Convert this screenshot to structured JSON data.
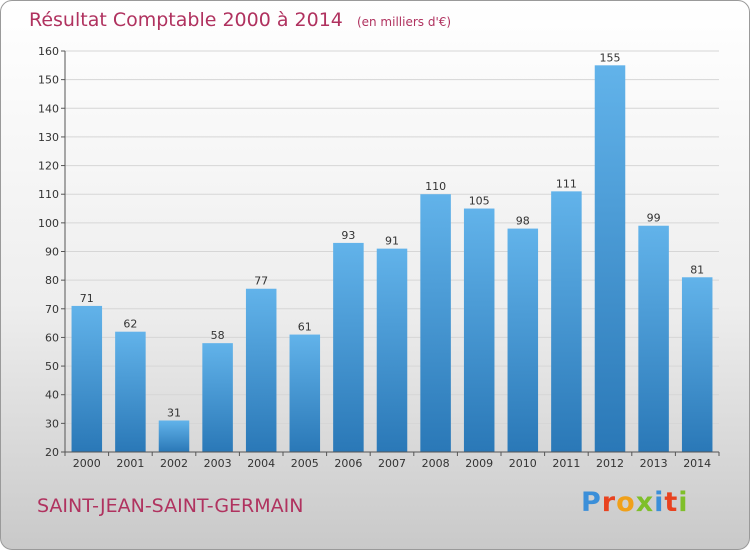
{
  "header": {
    "title": "Résultat Comptable 2000 à 2014",
    "unit": "(en milliers d'€)"
  },
  "footer": {
    "city": "SAINT-JEAN-SAINT-GERMAIN",
    "logo_letters": [
      "P",
      "r",
      "o",
      "x",
      "i",
      "t",
      "i"
    ],
    "logo_colors": [
      "#3b8fd9",
      "#e8421f",
      "#f0a019",
      "#7fbf2a",
      "#3b8fd9",
      "#e8421f",
      "#7fbf2a"
    ]
  },
  "colors": {
    "title": "#b0325f",
    "bar_top": "#62b3ea",
    "bar_bottom": "#2a78b7"
  },
  "chart_data": {
    "type": "bar",
    "title": "Résultat Comptable 2000 à 2014",
    "subtitle": "(en milliers d'€)",
    "categories": [
      "2000",
      "2001",
      "2002",
      "2003",
      "2004",
      "2005",
      "2006",
      "2007",
      "2008",
      "2009",
      "2010",
      "2011",
      "2012",
      "2013",
      "2014"
    ],
    "values": [
      71,
      62,
      31,
      58,
      77,
      61,
      93,
      91,
      110,
      105,
      98,
      111,
      155,
      99,
      81
    ],
    "ylim": [
      20,
      160
    ],
    "yticks": [
      20,
      30,
      40,
      50,
      60,
      70,
      80,
      90,
      100,
      110,
      120,
      130,
      140,
      150,
      160
    ],
    "grid": true,
    "xlabel": "",
    "ylabel": ""
  }
}
